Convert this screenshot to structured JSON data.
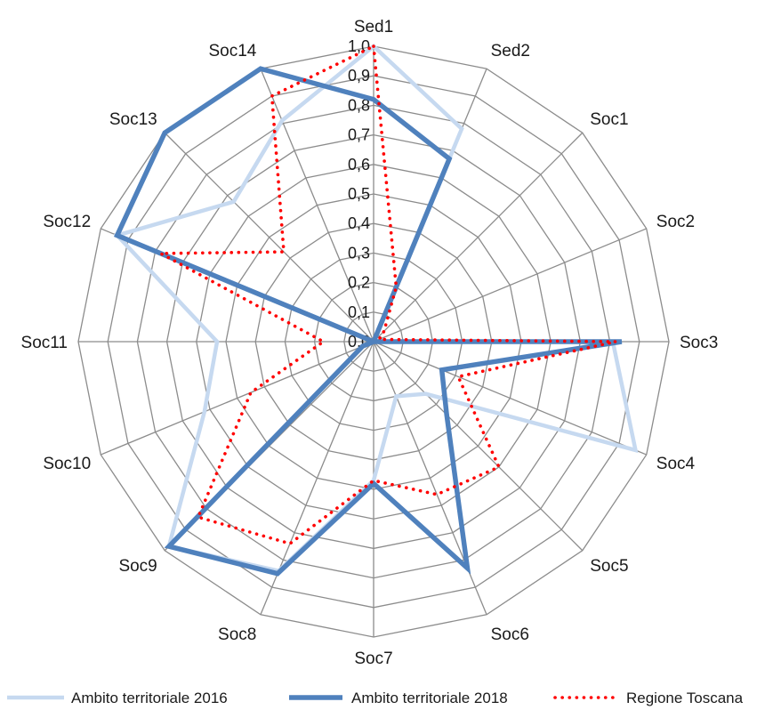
{
  "chart_data": {
    "type": "radar",
    "title": "",
    "categories": [
      "Sed1",
      "Sed2",
      "Soc1",
      "Soc2",
      "Soc3",
      "Soc4",
      "Soc5",
      "Soc6",
      "Soc7",
      "Soc8",
      "Soc9",
      "Soc10",
      "Soc11",
      "Soc12",
      "Soc13",
      "Soc14"
    ],
    "radial_ticks": [
      "0,0",
      "0,1",
      "0,2",
      "0,3",
      "0,4",
      "0,5",
      "0,6",
      "0,7",
      "0,8",
      "0,9",
      "1,0"
    ],
    "rlim": [
      0,
      1
    ],
    "grid": true,
    "legend_position": "bottom",
    "series": [
      {
        "name": "Ambito territoriale 2016",
        "color": "#c6d9f0",
        "style": "solid-thin",
        "values": [
          1.0,
          0.78,
          0.0,
          0.0,
          0.81,
          0.96,
          0.25,
          0.2,
          0.47,
          0.84,
          0.98,
          0.62,
          0.53,
          0.94,
          0.67,
          0.81
        ]
      },
      {
        "name": "Ambito territoriale 2018",
        "color": "#4f81bd",
        "style": "solid-thick",
        "values": [
          0.82,
          0.67,
          0.0,
          0.0,
          0.84,
          0.25,
          0.35,
          0.83,
          0.48,
          0.85,
          0.98,
          0.04,
          0.0,
          0.94,
          1.0,
          1.0
        ]
      },
      {
        "name": "Regione Toscana",
        "color": "#ff0000",
        "style": "dotted",
        "values": [
          1.0,
          0.2,
          0.05,
          0.02,
          0.82,
          0.31,
          0.6,
          0.56,
          0.47,
          0.74,
          0.84,
          0.45,
          0.17,
          0.78,
          0.43,
          0.9
        ]
      }
    ]
  }
}
